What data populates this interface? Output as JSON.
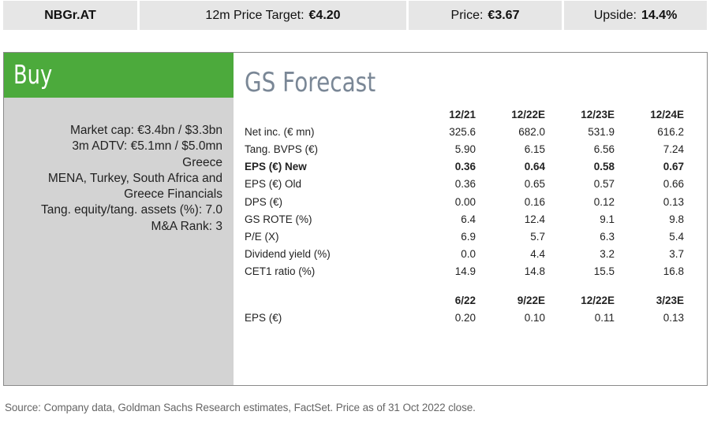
{
  "header": {
    "ticker": "NBGr.AT",
    "target_label": "12m Price Target:",
    "target_value": "€4.20",
    "price_label": "Price:",
    "price_value": "€3.67",
    "upside_label": "Upside:",
    "upside_value": "14.4%"
  },
  "rating": "Buy",
  "brand_color": "#4caa3c",
  "metrics": [
    "Market cap: €3.4bn / $3.3bn",
    "3m ADTV: €5.1mn / $5.0mn",
    "Greece",
    "MENA, Turkey, South Africa and",
    "Greece Financials",
    "Tang. equity/tang. assets (%): 7.0",
    "M&A Rank: 3"
  ],
  "forecast_title": "GS Forecast",
  "annual": {
    "columns": [
      "12/21",
      "12/22E",
      "12/23E",
      "12/24E"
    ],
    "rows": [
      {
        "label": "Net inc. (€ mn)",
        "values": [
          "325.6",
          "682.0",
          "531.9",
          "616.2"
        ]
      },
      {
        "label": "Tang. BVPS (€)",
        "values": [
          "5.90",
          "6.15",
          "6.56",
          "7.24"
        ]
      },
      {
        "label": "EPS (€) New",
        "values": [
          "0.36",
          "0.64",
          "0.58",
          "0.67"
        ]
      },
      {
        "label": "EPS (€) Old",
        "values": [
          "0.36",
          "0.65",
          "0.57",
          "0.66"
        ]
      },
      {
        "label": "DPS (€)",
        "values": [
          "0.00",
          "0.16",
          "0.12",
          "0.13"
        ]
      },
      {
        "label": "GS ROTE (%)",
        "values": [
          "6.4",
          "12.4",
          "9.1",
          "9.8"
        ]
      },
      {
        "label": "P/E (X)",
        "values": [
          "6.9",
          "5.7",
          "6.3",
          "5.4"
        ]
      },
      {
        "label": "Dividend yield (%)",
        "values": [
          "0.0",
          "4.4",
          "3.2",
          "3.7"
        ]
      },
      {
        "label": "CET1 ratio (%)",
        "values": [
          "14.9",
          "14.8",
          "15.5",
          "16.8"
        ]
      }
    ]
  },
  "quarterly": {
    "columns": [
      "6/22",
      "9/22E",
      "12/22E",
      "3/23E"
    ],
    "rows": [
      {
        "label": "EPS (€)",
        "values": [
          "0.20",
          "0.10",
          "0.11",
          "0.13"
        ]
      }
    ]
  },
  "footer": "Source: Company data, Goldman Sachs Research estimates, FactSet. Price as of 31 Oct 2022 close."
}
